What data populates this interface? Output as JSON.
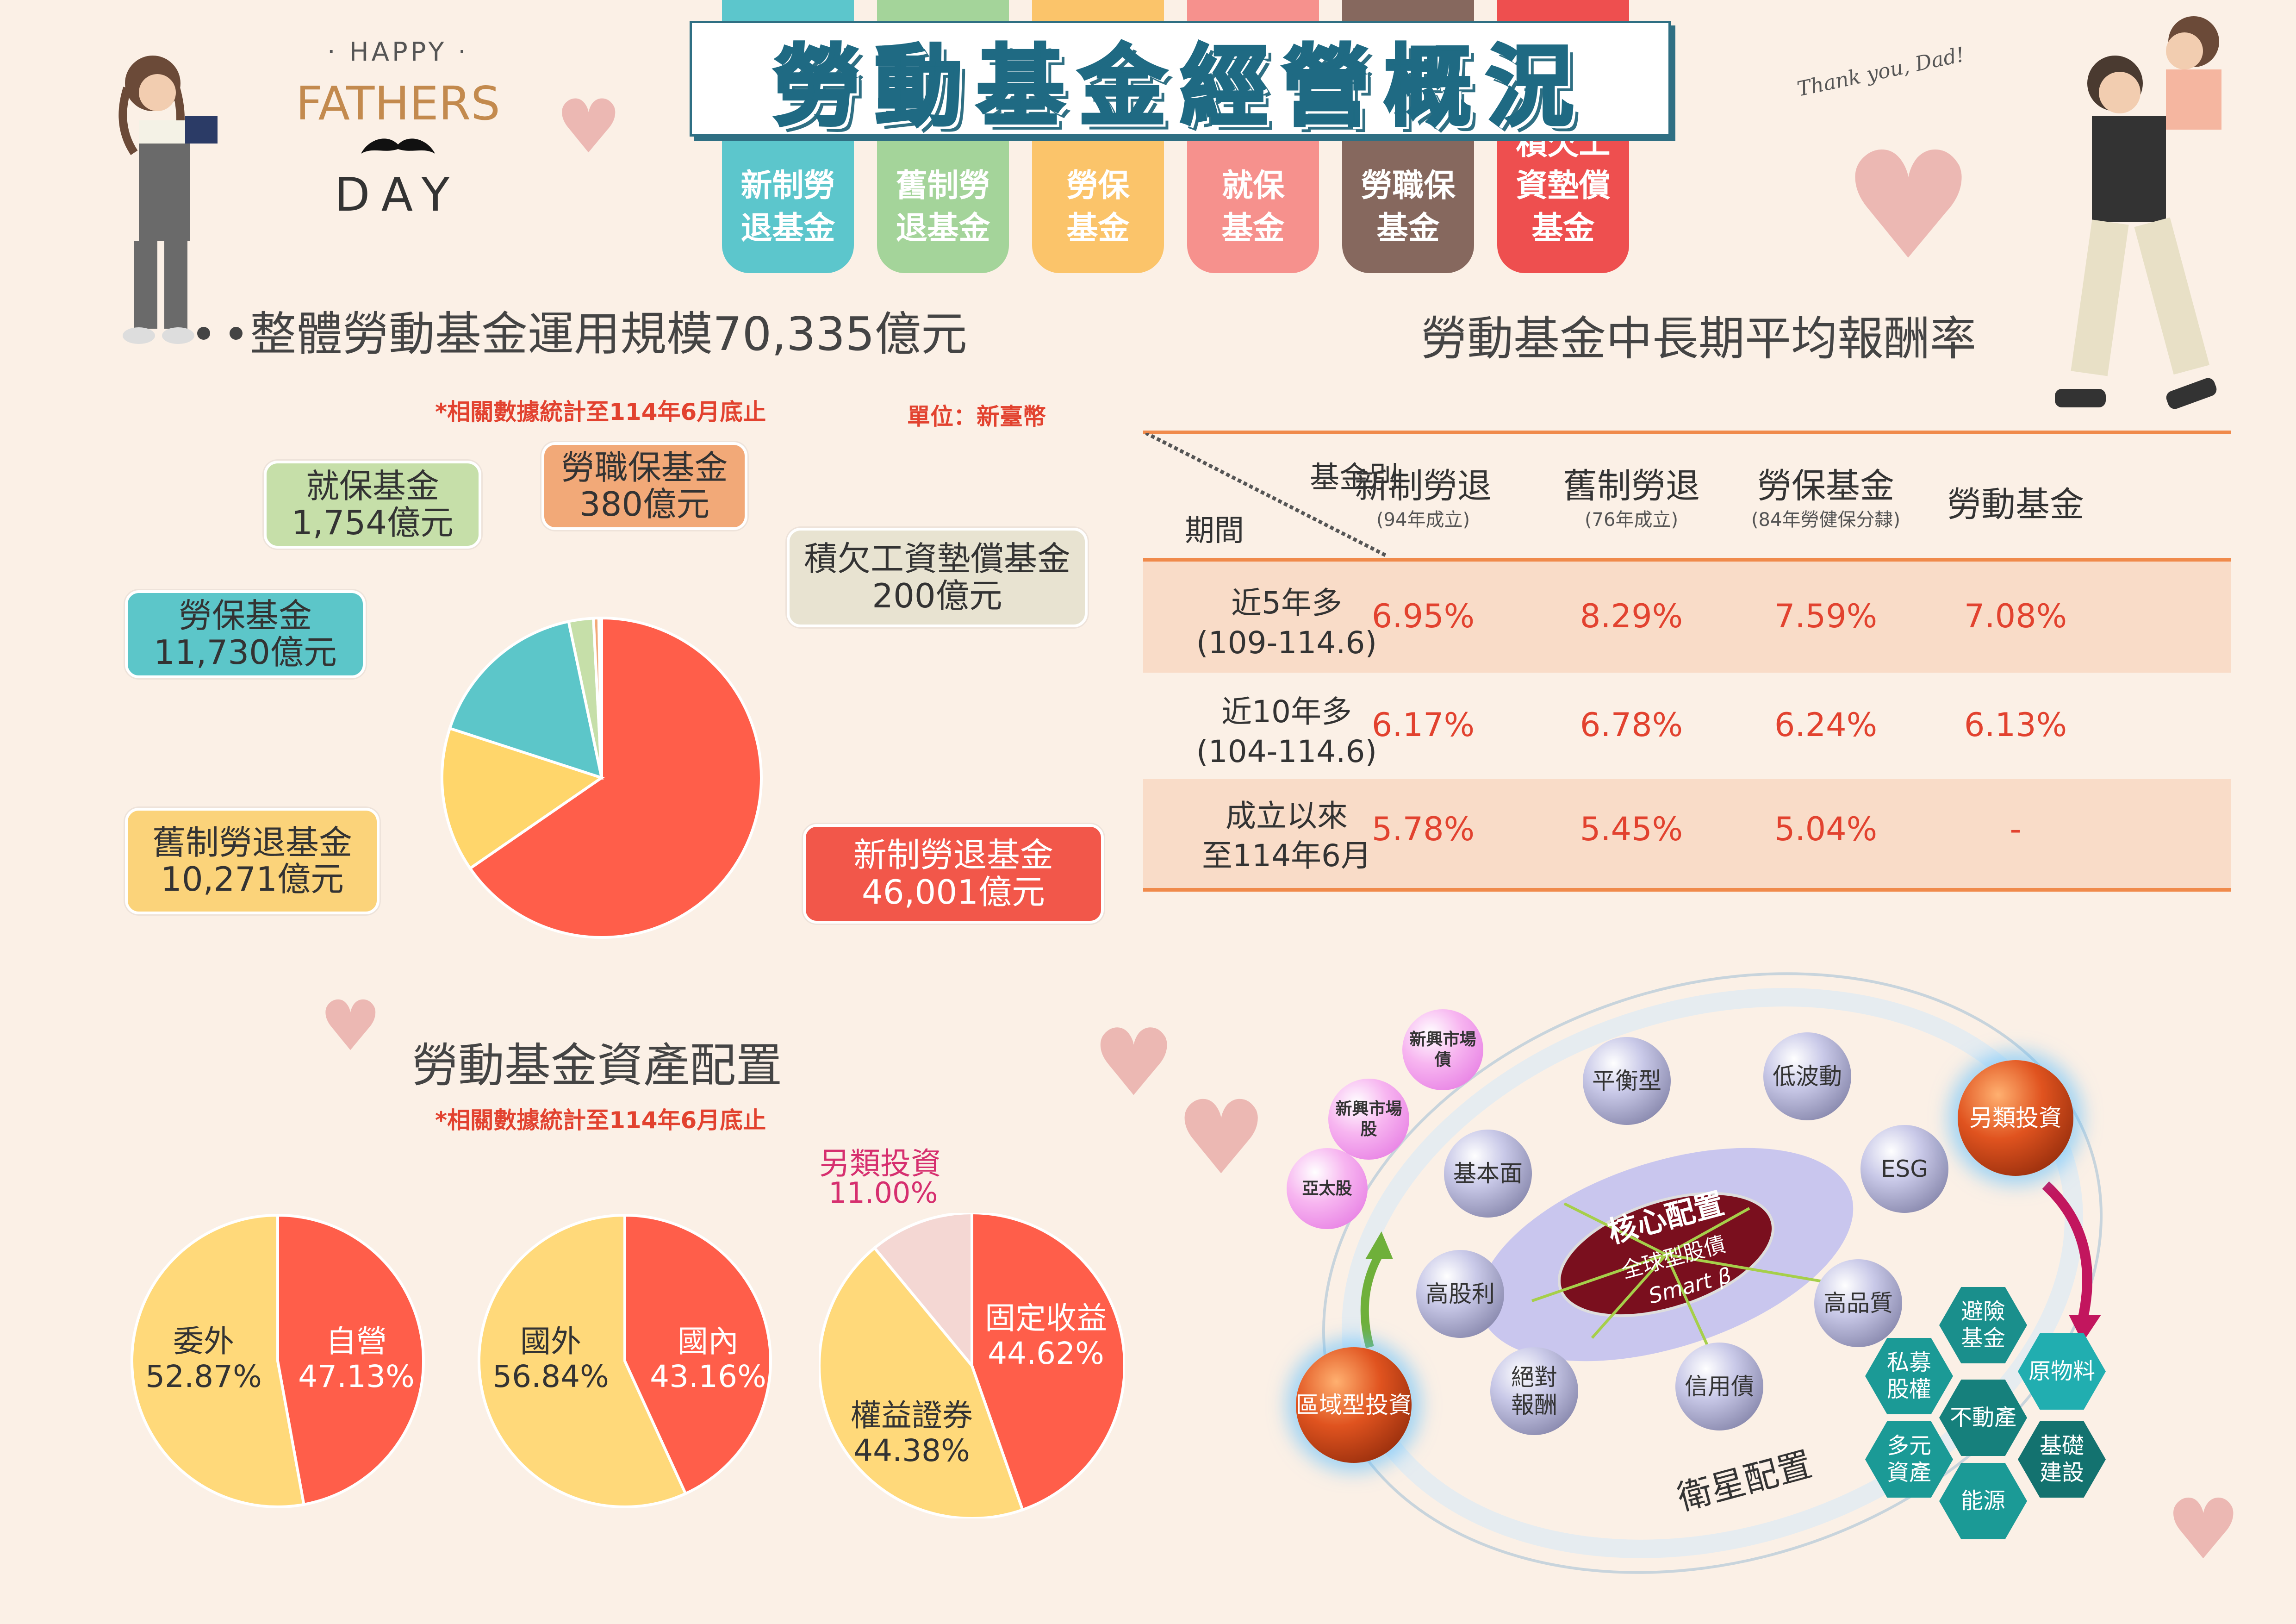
{
  "header": {
    "happy": "· HAPPY ·",
    "fathers": "FATHERS",
    "day": "DAY",
    "title": "勞動基金經營概況",
    "thank_you": "Thank you, Dad!",
    "tabs": [
      {
        "label": "新制勞\n退基金",
        "color": "#5cc6cc"
      },
      {
        "label": "舊制勞\n退基金",
        "color": "#a4d49a"
      },
      {
        "label": "勞保\n基金",
        "color": "#fbc46a"
      },
      {
        "label": "就保\n基金",
        "color": "#f6918d"
      },
      {
        "label": "勞職保\n基金",
        "color": "#86685e"
      },
      {
        "label": "積欠工\n資墊償\n基金",
        "color": "#ee4f4f"
      }
    ]
  },
  "scale": {
    "title": "整體勞動基金運用規模70,335億元",
    "note": "*相關數據統計至114年6月底止",
    "unit": "單位：新臺幣",
    "callouts": [
      {
        "name": "就保基金",
        "value": "1,754億元",
        "color": "#c6dfa9"
      },
      {
        "name": "勞職保基金",
        "value": "380億元",
        "color": "#f2a978"
      },
      {
        "name": "積欠工資墊償基金",
        "value": "200億元",
        "color": "#e8e3d1"
      },
      {
        "name": "勞保基金",
        "value": "11,730億元",
        "color": "#5cc6c9"
      },
      {
        "name": "舊制勞退基金",
        "value": "10,271億元",
        "color": "#fbd37a"
      },
      {
        "name": "新制勞退基金",
        "value": "46,001億元",
        "color": "#f2574a"
      }
    ]
  },
  "returns": {
    "title": "勞動基金中長期平均報酬率",
    "corner_top": "基金別",
    "corner_bottom": "期間",
    "columns": [
      {
        "name": "新制勞退",
        "sub": "(94年成立)"
      },
      {
        "name": "舊制勞退",
        "sub": "(76年成立)"
      },
      {
        "name": "勞保基金",
        "sub": "(84年勞健保分隸)"
      },
      {
        "name": "勞動基金",
        "sub": ""
      }
    ],
    "rows": [
      {
        "period": "近5年多\n(109-114.6)",
        "values": [
          "6.95%",
          "8.29%",
          "7.59%",
          "7.08%"
        ]
      },
      {
        "period": "近10年多\n(104-114.6)",
        "values": [
          "6.17%",
          "6.78%",
          "6.24%",
          "6.13%"
        ]
      },
      {
        "period": "成立以來\n至114年6月",
        "values": [
          "5.78%",
          "5.45%",
          "5.04%",
          "-"
        ]
      }
    ]
  },
  "allocation": {
    "title": "勞動基金資產配置",
    "note": "*相關數據統計至114年6月底止",
    "alt_label": "另類投資",
    "alt_value": "11.00%"
  },
  "chart_data": [
    {
      "type": "pie",
      "title": "整體勞動基金運用規模70,335億元",
      "unit": "億元",
      "categories": [
        "新制勞退基金",
        "舊制勞退基金",
        "勞保基金",
        "就保基金",
        "勞職保基金",
        "積欠工資墊償基金"
      ],
      "values": [
        46001,
        10271,
        11730,
        1754,
        380,
        200
      ],
      "colors": [
        "#ff5e4a",
        "#ffd66b",
        "#5cc6c9",
        "#c6dfa9",
        "#f2a978",
        "#e8e3d1"
      ]
    },
    {
      "type": "pie",
      "categories": [
        "自營",
        "委外"
      ],
      "values": [
        47.13,
        52.87
      ],
      "labels": [
        "47.13%",
        "52.87%"
      ],
      "colors": [
        "#ff5e4a",
        "#ffd97a"
      ]
    },
    {
      "type": "pie",
      "categories": [
        "國內",
        "國外"
      ],
      "values": [
        43.16,
        56.84
      ],
      "labels": [
        "43.16%",
        "56.84%"
      ],
      "colors": [
        "#ff5e4a",
        "#ffd97a"
      ]
    },
    {
      "type": "pie",
      "categories": [
        "固定收益",
        "權益證券",
        "另類投資"
      ],
      "values": [
        44.62,
        44.38,
        11.0
      ],
      "labels": [
        "44.62%",
        "44.38%",
        "11.00%"
      ],
      "colors": [
        "#ff5e4a",
        "#ffd97a",
        "#f4d7d3"
      ]
    }
  ],
  "strategy": {
    "core_title": "核心配置",
    "core_sub1": "全球型股債",
    "core_sub2": "Smart β",
    "satellite": "衛星配置",
    "bubbles": [
      "平衡型",
      "低波動",
      "基本面",
      "ESG",
      "高股利",
      "高品質",
      "絕對\n報酬",
      "信用債"
    ],
    "pink": [
      "新興市場\n債",
      "新興市場\n股",
      "亞太股"
    ],
    "regional": "區域型投資",
    "alternative": "另類投資",
    "hexes": [
      "避險\n基金",
      "私募\n股權",
      "原物料",
      "不動產",
      "多元\n資產",
      "基礎\n建設",
      "能源"
    ]
  }
}
